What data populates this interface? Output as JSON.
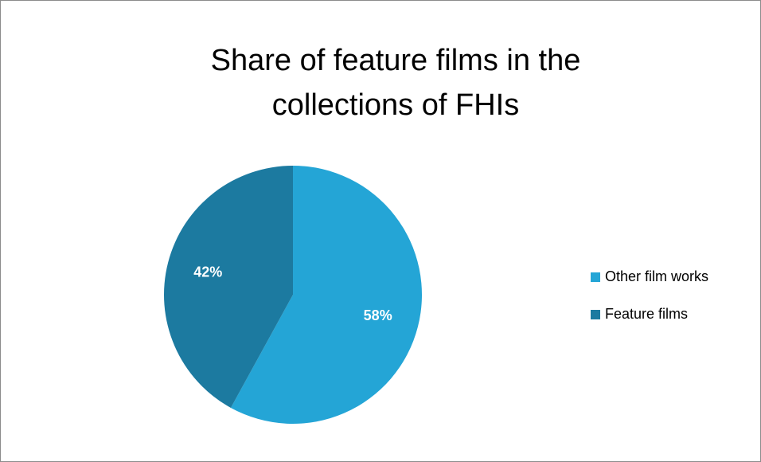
{
  "chart_data": {
    "type": "pie",
    "title": "Share of feature films in the collections of FHIs",
    "categories": [
      "Other film works",
      "Feature films"
    ],
    "values": [
      58,
      42
    ],
    "value_labels": [
      "58%",
      "42%"
    ],
    "colors": [
      "#24a5d6",
      "#1c7aa0"
    ],
    "legend": "right"
  }
}
